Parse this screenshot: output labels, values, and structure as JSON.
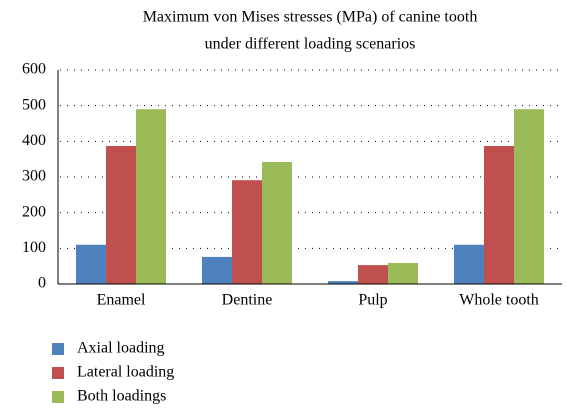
{
  "chart_data": {
    "type": "bar",
    "title": [
      "Maximum von Mises stresses (MPa) of canine tooth",
      "under different loading scenarios"
    ],
    "categories": [
      "Enamel",
      "Dentine",
      "Pulp",
      "Whole tooth"
    ],
    "series": [
      {
        "name": "Axial loading",
        "color": "#4f81bd",
        "values": [
          110,
          76,
          8,
          110
        ]
      },
      {
        "name": "Lateral loading",
        "color": "#c0504d",
        "values": [
          387,
          291,
          53,
          387
        ]
      },
      {
        "name": "Both loadings",
        "color": "#9bbb59",
        "values": [
          490,
          342,
          59,
          490
        ]
      }
    ],
    "ylim": [
      0,
      600
    ],
    "yticks": [
      0,
      100,
      200,
      300,
      400,
      500,
      600
    ],
    "grid": true,
    "legend": "bottom"
  }
}
